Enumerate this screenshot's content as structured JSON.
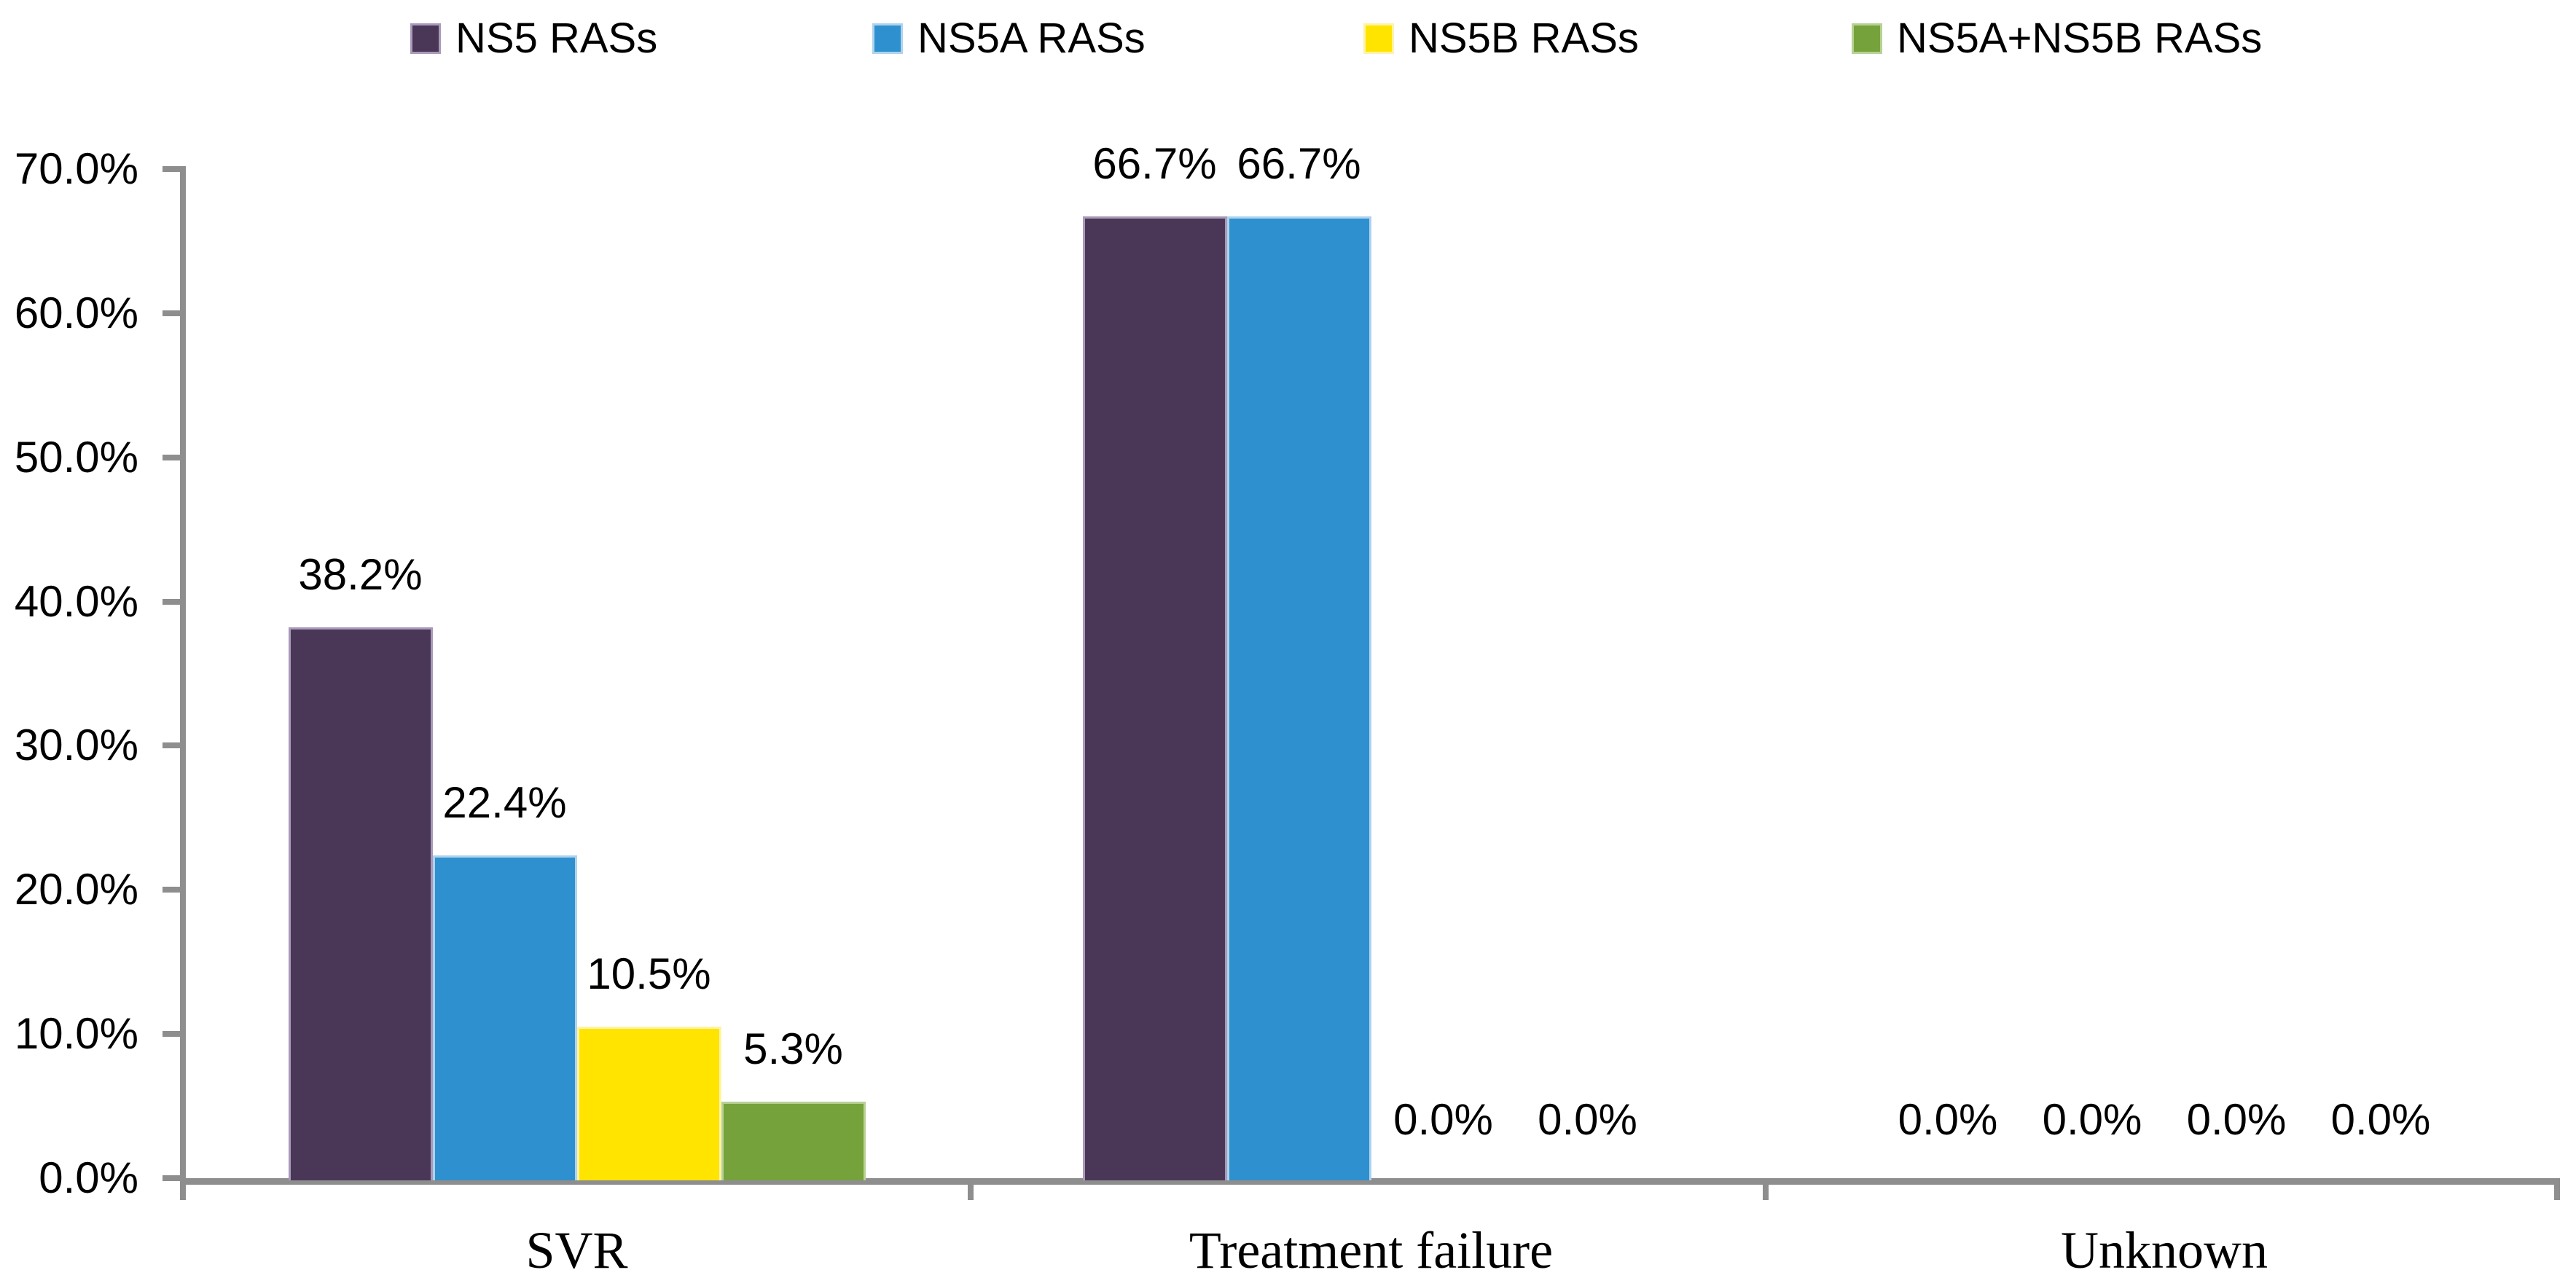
{
  "chart_data": {
    "type": "bar",
    "title": "",
    "categories": [
      "SVR",
      "Treatment failure",
      "Unknown"
    ],
    "series": [
      {
        "name": "NS5 RASs",
        "color": "#4a3757",
        "edge_color": "#a89ab8",
        "values": [
          38.2,
          66.7,
          0.0
        ]
      },
      {
        "name": "NS5A RASs",
        "color": "#2e90ce",
        "edge_color": "#aed3ee",
        "values": [
          22.4,
          66.7,
          0.0
        ]
      },
      {
        "name": "NS5B RASs",
        "color": "#ffe400",
        "edge_color": "#fff3a6",
        "values": [
          10.5,
          0.0,
          0.0
        ]
      },
      {
        "name": "NS5A+NS5B RASs",
        "color": "#76a23c",
        "edge_color": "#b7d194",
        "values": [
          5.3,
          0.0,
          0.0
        ]
      }
    ],
    "value_label_format": "percent_one_decimal",
    "y_ticks": [
      "70.0%",
      "60.0%",
      "50.0%",
      "40.0%",
      "30.0%",
      "20.0%",
      "10.0%",
      "0.0%"
    ],
    "ylim": [
      0,
      70
    ],
    "grid": false,
    "legend_position": "top",
    "axis_color": "#8e8e8e",
    "text_color": "#000000"
  }
}
